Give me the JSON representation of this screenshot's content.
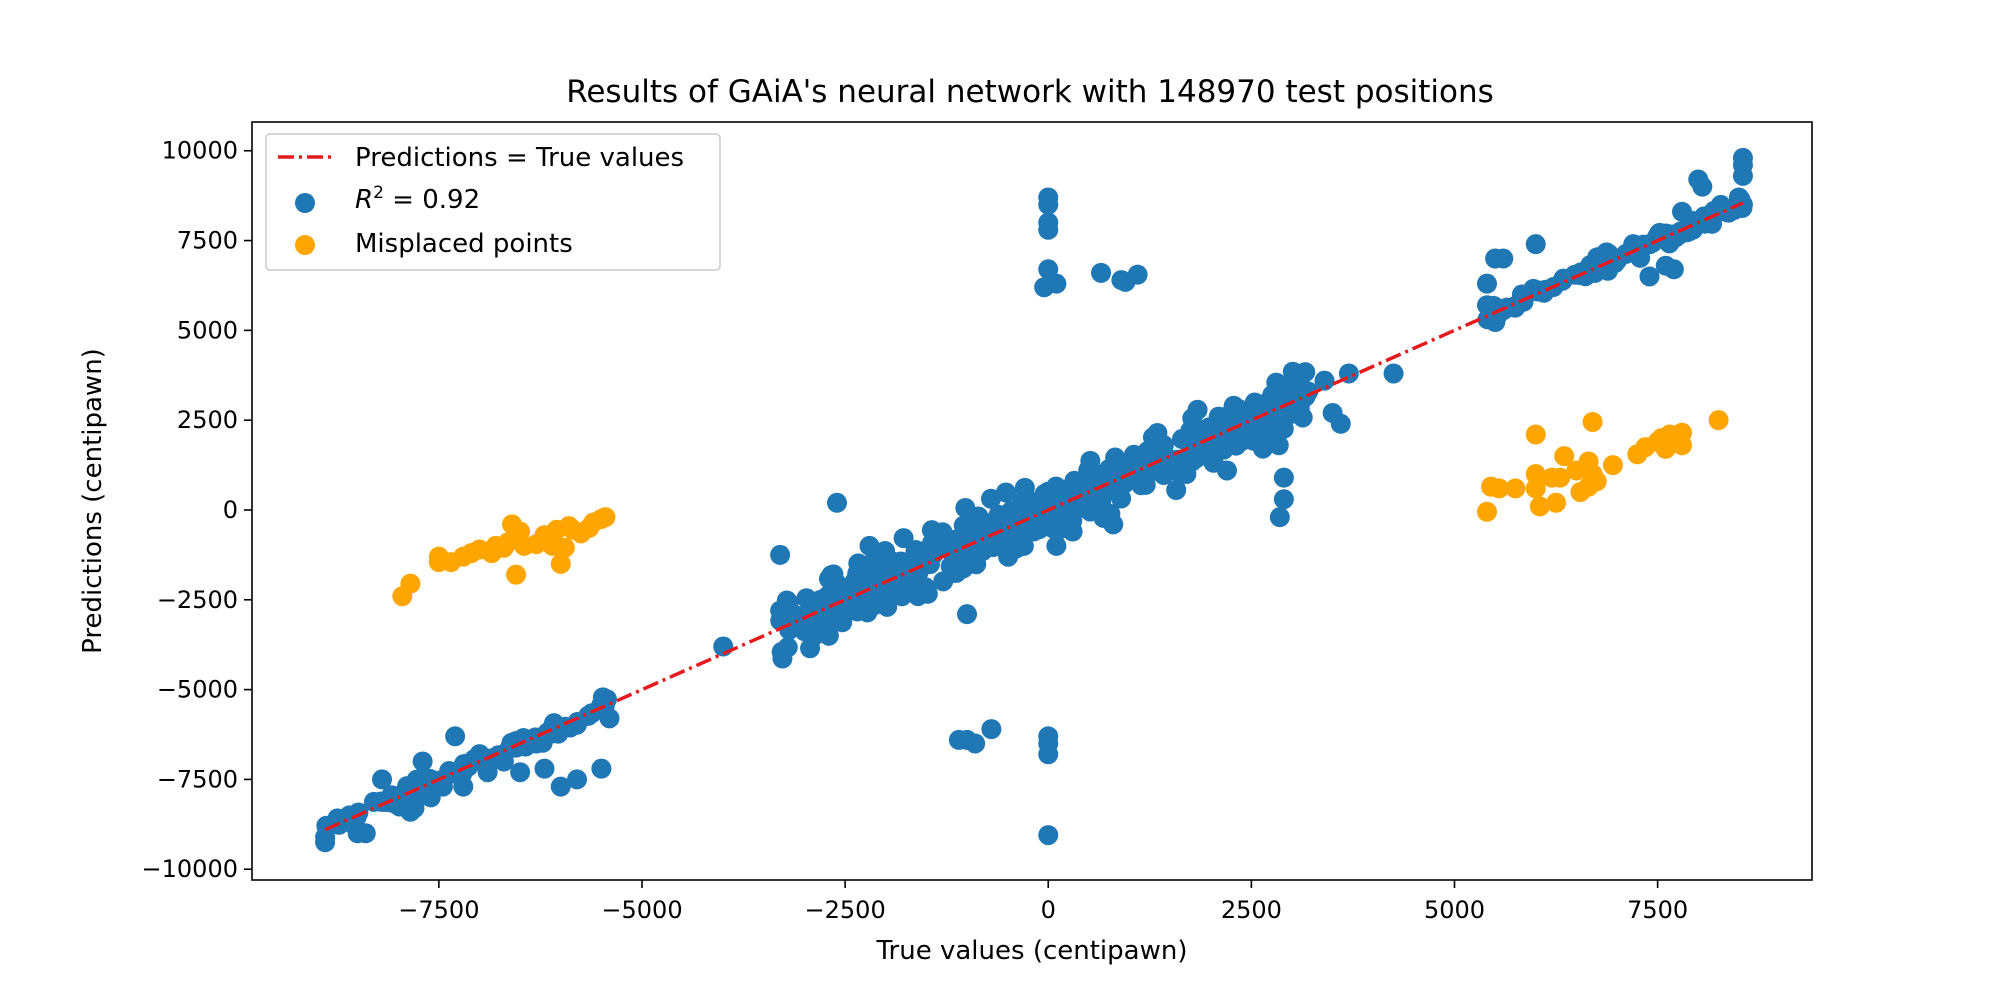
{
  "chart_data": {
    "type": "scatter",
    "title": "Results of GAiA's neural network with 148970 test positions",
    "xlabel": "True values (centipawn)",
    "ylabel": "Predictions (centipawn)",
    "xlim": [
      -9800,
      9400
    ],
    "ylim": [
      -10300,
      10800
    ],
    "xticks": [
      -7500,
      -5000,
      -2500,
      0,
      2500,
      5000,
      7500
    ],
    "xtick_labels": [
      "−7500",
      "−5000",
      "−2500",
      "0",
      "2500",
      "5000",
      "7500"
    ],
    "yticks": [
      -10000,
      -7500,
      -5000,
      -2500,
      0,
      2500,
      5000,
      7500,
      10000
    ],
    "ytick_labels": [
      "−10000",
      "−7500",
      "−5000",
      "−2500",
      "0",
      "2500",
      "5000",
      "7500",
      "10000"
    ],
    "grid": false,
    "legend_position": "top-left",
    "reference_line": {
      "name": "Predictions = True values",
      "color": "#e41a1c",
      "style": "dash-dot",
      "x": [
        -8900,
        8550
      ],
      "y": [
        -8900,
        8550
      ]
    },
    "series": [
      {
        "name": "R² = 0.92",
        "name_base": "R",
        "name_sup": "2",
        "name_rest": " = 0.92",
        "color": "#1f77b4",
        "cluster_points": [
          [
            -8900,
            -9250
          ],
          [
            -8900,
            -9100
          ],
          [
            -8700,
            -8700
          ],
          [
            -8600,
            -8500
          ],
          [
            -8500,
            -9000
          ],
          [
            -8400,
            -9000
          ],
          [
            -8200,
            -7500
          ],
          [
            -7850,
            -8400
          ],
          [
            -7800,
            -8300
          ],
          [
            -7700,
            -7000
          ],
          [
            -7600,
            -8000
          ],
          [
            -7450,
            -7700
          ],
          [
            -7300,
            -6300
          ],
          [
            -7200,
            -7700
          ],
          [
            -6900,
            -7300
          ],
          [
            -6700,
            -7000
          ],
          [
            -6500,
            -7300
          ],
          [
            -6300,
            -6500
          ],
          [
            -6200,
            -7200
          ],
          [
            -6000,
            -7700
          ],
          [
            -5800,
            -7500
          ],
          [
            -5500,
            -7200
          ],
          [
            -5400,
            -5800
          ],
          [
            -4000,
            -3800
          ],
          [
            -3300,
            -2800
          ],
          [
            -3300,
            -1250
          ],
          [
            -3000,
            -3000
          ],
          [
            -2800,
            -2500
          ],
          [
            -2700,
            -3500
          ],
          [
            -2600,
            200
          ],
          [
            -2200,
            -1000
          ],
          [
            -2000,
            -2600
          ],
          [
            -1800,
            -2400
          ],
          [
            -1500,
            -1400
          ],
          [
            -1000,
            -2900
          ],
          [
            -900,
            -500
          ],
          [
            -500,
            -500
          ],
          [
            -300,
            -1000
          ],
          [
            100,
            -1000
          ],
          [
            300,
            -600
          ],
          [
            500,
            500
          ],
          [
            800,
            -400
          ],
          [
            1200,
            700
          ],
          [
            1700,
            1000
          ],
          [
            2200,
            1100
          ],
          [
            2500,
            2000
          ],
          [
            2800,
            2600
          ],
          [
            2900,
            900
          ],
          [
            2900,
            300
          ],
          [
            2850,
            -200
          ],
          [
            3000,
            3000
          ],
          [
            3200,
            3300
          ],
          [
            3400,
            3600
          ],
          [
            3500,
            2700
          ],
          [
            3600,
            2400
          ],
          [
            3700,
            3800
          ],
          [
            4250,
            3800
          ],
          [
            5500,
            7000
          ],
          [
            5600,
            7000
          ],
          [
            5400,
            6300
          ],
          [
            5400,
            5700
          ],
          [
            6000,
            7400
          ],
          [
            6800,
            6900
          ],
          [
            7200,
            7400
          ],
          [
            7400,
            6500
          ],
          [
            7600,
            6800
          ],
          [
            7700,
            6700
          ],
          [
            7800,
            8300
          ],
          [
            8000,
            9200
          ],
          [
            8050,
            9000
          ],
          [
            8550,
            9800
          ],
          [
            8550,
            9600
          ],
          [
            8550,
            9300
          ],
          [
            8500,
            8700
          ],
          [
            8550,
            8500
          ],
          [
            0,
            8700
          ],
          [
            0,
            8500
          ],
          [
            0,
            8000
          ],
          [
            0,
            7800
          ],
          [
            0,
            6700
          ],
          [
            -50,
            6200
          ],
          [
            100,
            6300
          ],
          [
            650,
            6600
          ],
          [
            900,
            6400
          ],
          [
            950,
            6350
          ],
          [
            1100,
            6550
          ],
          [
            0,
            -9050
          ],
          [
            0,
            -6800
          ],
          [
            0,
            -6300
          ],
          [
            0,
            -6500
          ],
          [
            -1100,
            -6400
          ],
          [
            -1000,
            -6400
          ],
          [
            -900,
            -6500
          ],
          [
            -700,
            -6100
          ]
        ],
        "bands": [
          {
            "x0": -8900,
            "x1": -5400,
            "spread": 200,
            "n": 80
          },
          {
            "x0": 5400,
            "x1": 8550,
            "spread": 220,
            "n": 80
          },
          {
            "x0": -3300,
            "x1": 3200,
            "spread": 700,
            "n": 420
          }
        ]
      },
      {
        "name": "Misplaced points",
        "color": "#ffa500",
        "points": [
          [
            -7950,
            -2400
          ],
          [
            -7850,
            -2050
          ],
          [
            -7500,
            -1450
          ],
          [
            -7500,
            -1300
          ],
          [
            -7350,
            -1450
          ],
          [
            -7200,
            -1300
          ],
          [
            -7100,
            -1200
          ],
          [
            -7000,
            -1100
          ],
          [
            -6850,
            -1200
          ],
          [
            -6800,
            -1000
          ],
          [
            -6700,
            -1050
          ],
          [
            -6650,
            -900
          ],
          [
            -6600,
            -400
          ],
          [
            -6550,
            -1800
          ],
          [
            -6500,
            -600
          ],
          [
            -6450,
            -1000
          ],
          [
            -6300,
            -950
          ],
          [
            -6200,
            -700
          ],
          [
            -6100,
            -1000
          ],
          [
            -6050,
            -550
          ],
          [
            -6000,
            -1500
          ],
          [
            -5950,
            -1050
          ],
          [
            -5900,
            -450
          ],
          [
            -5850,
            -550
          ],
          [
            -5750,
            -650
          ],
          [
            -5650,
            -500
          ],
          [
            -5600,
            -350
          ],
          [
            -5500,
            -250
          ],
          [
            -5450,
            -200
          ],
          [
            5400,
            -50
          ],
          [
            5450,
            650
          ],
          [
            5550,
            600
          ],
          [
            5750,
            600
          ],
          [
            6000,
            2100
          ],
          [
            6000,
            1000
          ],
          [
            6000,
            600
          ],
          [
            6050,
            100
          ],
          [
            6200,
            900
          ],
          [
            6250,
            200
          ],
          [
            6300,
            900
          ],
          [
            6350,
            1500
          ],
          [
            6500,
            1100
          ],
          [
            6550,
            500
          ],
          [
            6650,
            1350
          ],
          [
            6650,
            650
          ],
          [
            6700,
            2450
          ],
          [
            6700,
            1000
          ],
          [
            6750,
            800
          ],
          [
            6950,
            1250
          ],
          [
            7250,
            1550
          ],
          [
            7350,
            1750
          ],
          [
            7500,
            1900
          ],
          [
            7550,
            2000
          ],
          [
            7600,
            1700
          ],
          [
            7650,
            2100
          ],
          [
            7750,
            1950
          ],
          [
            7800,
            2150
          ],
          [
            7800,
            1800
          ],
          [
            8250,
            2500
          ]
        ]
      }
    ]
  }
}
